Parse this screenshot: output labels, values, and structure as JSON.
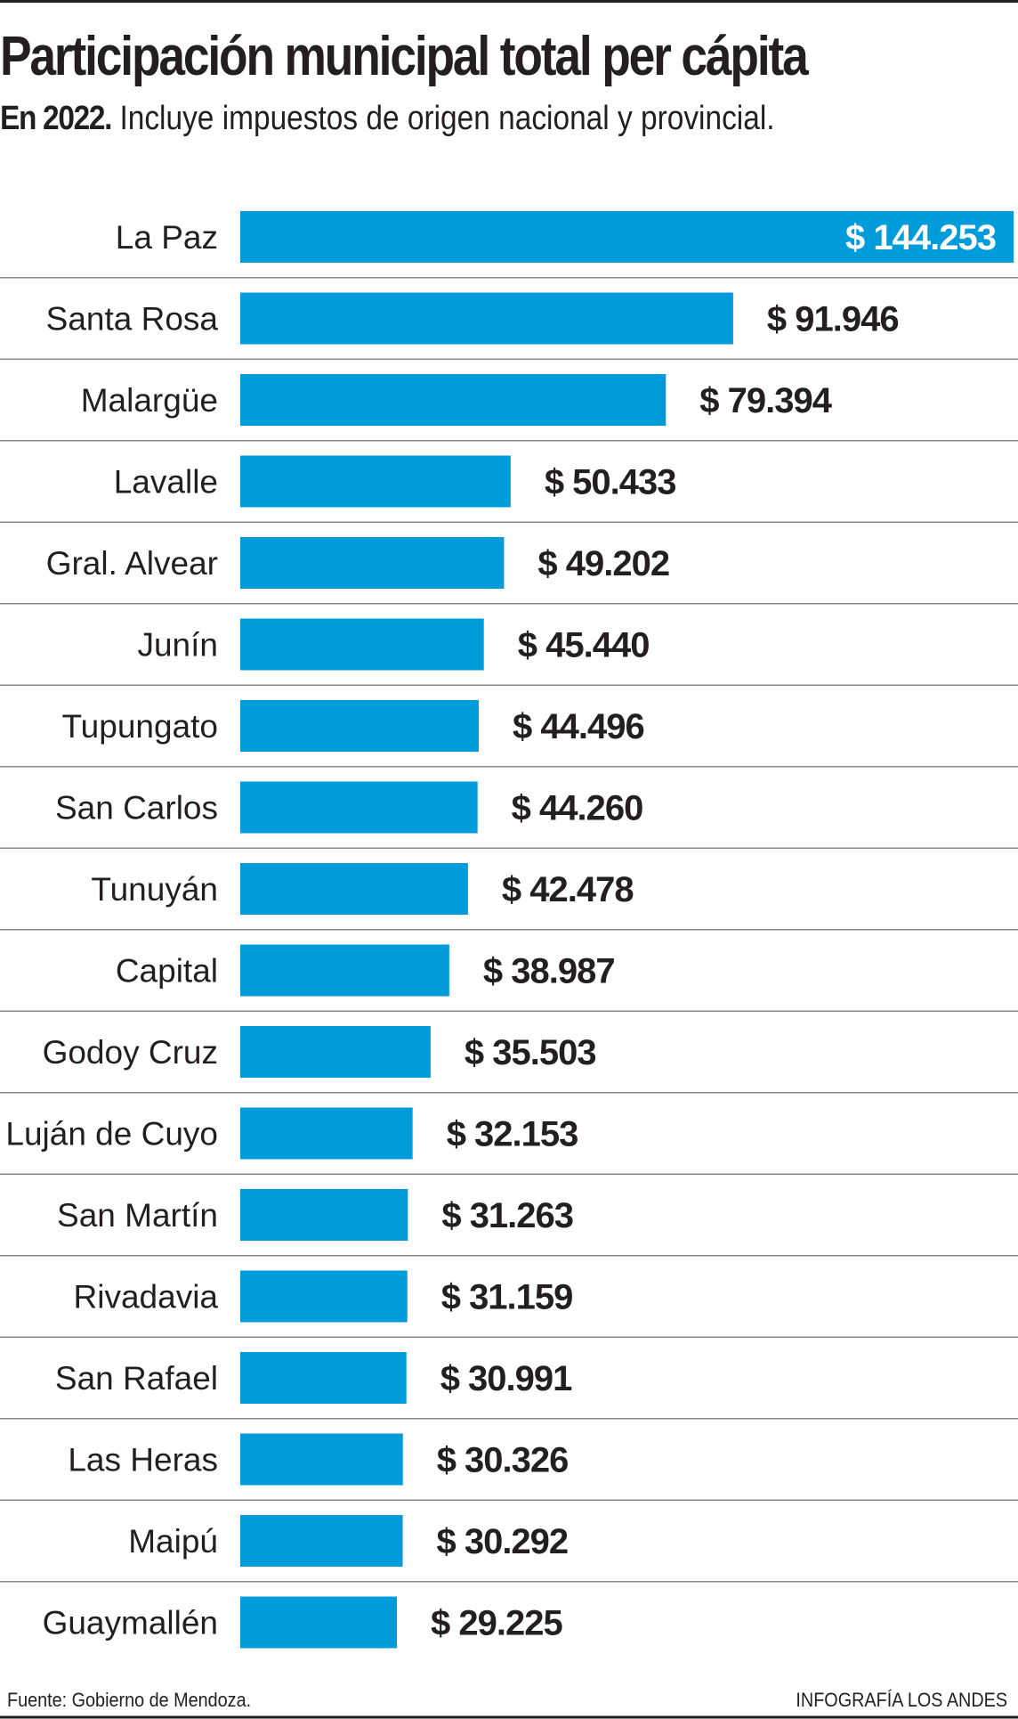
{
  "chart_data": {
    "type": "bar",
    "orientation": "horizontal",
    "title": "Participación municipal total per cápita",
    "subtitle_bold": "En 2022.",
    "subtitle": "Incluye impuestos de origen nacional y provincial.",
    "categories": [
      "La Paz",
      "Santa Rosa",
      "Malargüe",
      "Lavalle",
      "Gral. Alvear",
      "Junín",
      "Tupungato",
      "San Carlos",
      "Tunuyán",
      "Capital",
      "Godoy Cruz",
      "Luján de Cuyo",
      "San Martín",
      "Rivadavia",
      "San Rafael",
      "Las Heras",
      "Maipú",
      "Guaymallén"
    ],
    "values": [
      144253,
      91946,
      79394,
      50433,
      49202,
      45440,
      44496,
      44260,
      42478,
      38987,
      35503,
      32153,
      31263,
      31159,
      30991,
      30326,
      30292,
      29225
    ],
    "value_labels": [
      "$ 144.253",
      "$ 91.946",
      "$ 79.394",
      "$ 50.433",
      "$ 49.202",
      "$ 45.440",
      "$ 44.496",
      "$ 44.260",
      "$ 42.478",
      "$ 38.987",
      "$ 35.503",
      "$ 32.153",
      "$ 31.263",
      "$ 31.159",
      "$ 30.991",
      "$ 30.326",
      "$ 30.292",
      "$ 29.225"
    ],
    "xlim": [
      0,
      144253
    ],
    "grid": false,
    "bar_color": "#009bdb",
    "separator_color": "#8a8a8a"
  },
  "footer": {
    "source": "Fuente: Gobierno de Mendoza.",
    "credit": "INFOGRAFÍA LOS ANDES"
  }
}
